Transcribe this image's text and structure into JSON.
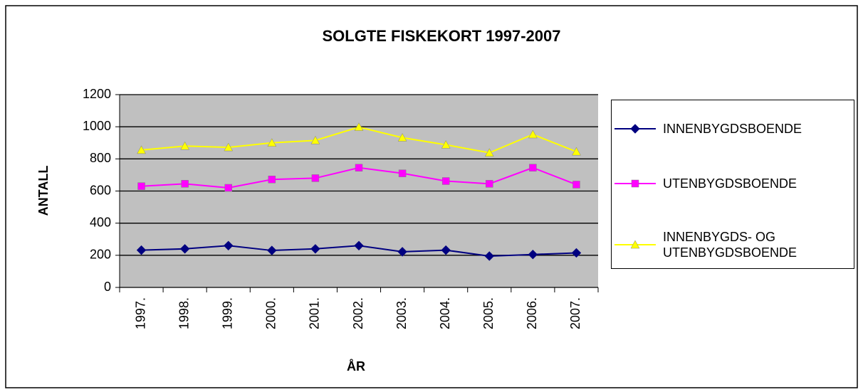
{
  "chart_data": {
    "type": "line",
    "title": "SOLGTE FISKEKORT 1997-2007",
    "x_label": "ÅR",
    "y_label": "ANTALL",
    "categories": [
      "1997.",
      "1998.",
      "1999.",
      "2000.",
      "2001.",
      "2002.",
      "2003.",
      "2004.",
      "2005.",
      "2006.",
      "2007."
    ],
    "series": [
      {
        "name": "INNENBYGDSBOENDE",
        "color": "#000080",
        "marker": "diamond",
        "values": [
          232,
          240,
          260,
          230,
          240,
          260,
          222,
          232,
          195,
          205,
          215
        ]
      },
      {
        "name": "UTENBYGDSBOENDE",
        "color": "#ff00ff",
        "marker": "square",
        "values": [
          630,
          645,
          620,
          672,
          680,
          745,
          710,
          662,
          645,
          745,
          640
        ]
      },
      {
        "name": "INNENBYGDS- OG UTENBYGDSBOENDE",
        "color": "#ffff00",
        "marker": "triangle",
        "values": [
          855,
          880,
          872,
          900,
          915,
          998,
          932,
          888,
          838,
          952,
          845
        ]
      }
    ],
    "ylim": [
      0,
      1200
    ],
    "yticks": [
      0,
      200,
      400,
      600,
      800,
      1000,
      1200
    ],
    "grid": true,
    "legend": "right"
  }
}
